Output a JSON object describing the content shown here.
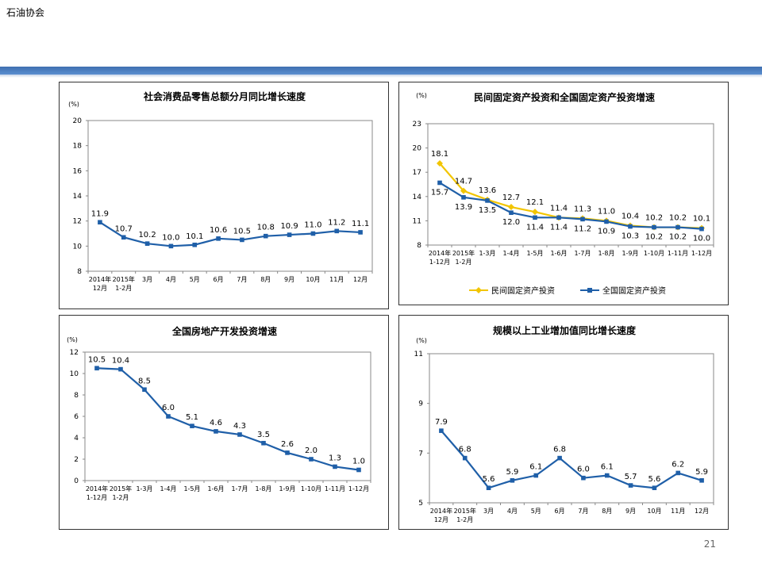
{
  "header": {
    "title": "石油协会",
    "page_number": "21"
  },
  "colors": {
    "accent_bar": "#4a7fc1",
    "series_blue": "#1f5fa8",
    "series_yellow": "#f2c500"
  },
  "chart_data": [
    {
      "type": "line",
      "title": "社会消费品零售总额分月同比增长速度",
      "ylabel": "(%)",
      "categories": [
        "2014年\n12月",
        "2015年\n1-2月",
        "3月",
        "4月",
        "5月",
        "6月",
        "7月",
        "8月",
        "9月",
        "10月",
        "11月",
        "12月"
      ],
      "series": [
        {
          "name": "",
          "values": [
            11.9,
            10.7,
            10.2,
            10.0,
            10.1,
            10.6,
            10.5,
            10.8,
            10.9,
            11.0,
            11.2,
            11.1
          ]
        }
      ],
      "ylim": [
        8,
        20
      ],
      "yticks": [
        8,
        10,
        12,
        14,
        16,
        18,
        20
      ],
      "grid": false
    },
    {
      "type": "line",
      "title": "民间固定资产投资和全国固定资产投资增速",
      "ylabel": "(%)",
      "categories": [
        "2014年\n1-12月",
        "2015年\n1-2月",
        "1-3月",
        "1-4月",
        "1-5月",
        "1-6月",
        "1-7月",
        "1-8月",
        "1-9月",
        "1-10月",
        "1-11月",
        "1-12月"
      ],
      "series": [
        {
          "name": "民间固定资产投资",
          "values": [
            18.1,
            14.7,
            13.6,
            12.7,
            12.1,
            11.4,
            11.3,
            11.0,
            10.4,
            10.2,
            10.2,
            10.1
          ]
        },
        {
          "name": "全国固定资产投资",
          "values": [
            15.7,
            13.9,
            13.5,
            12.0,
            11.4,
            11.4,
            11.2,
            10.9,
            10.3,
            10.2,
            10.2,
            10.0
          ]
        }
      ],
      "ylim": [
        8,
        23
      ],
      "yticks": [
        8,
        11,
        14,
        17,
        20,
        23
      ],
      "grid": false,
      "legend": "bottom"
    },
    {
      "type": "line",
      "title": "全国房地产开发投资增速",
      "ylabel": "(%)",
      "categories": [
        "2014年\n1-12月",
        "2015年\n1-2月",
        "1-3月",
        "1-4月",
        "1-5月",
        "1-6月",
        "1-7月",
        "1-8月",
        "1-9月",
        "1-10月",
        "1-11月",
        "1-12月"
      ],
      "series": [
        {
          "name": "",
          "values": [
            10.5,
            10.4,
            8.5,
            6.0,
            5.1,
            4.6,
            4.3,
            3.5,
            2.6,
            2.0,
            1.3,
            1.0
          ]
        }
      ],
      "ylim": [
        0,
        12
      ],
      "yticks": [
        0,
        2,
        4,
        6,
        8,
        10,
        12
      ],
      "grid": false
    },
    {
      "type": "line",
      "title": "规模以上工业增加值同比增长速度",
      "ylabel": "(%)",
      "categories": [
        "2014年\n12月",
        "2015年\n1-2月",
        "3月",
        "4月",
        "5月",
        "6月",
        "7月",
        "8月",
        "9月",
        "10月",
        "11月",
        "12月"
      ],
      "series": [
        {
          "name": "",
          "values": [
            7.9,
            6.8,
            5.6,
            5.9,
            6.1,
            6.8,
            6.0,
            6.1,
            5.7,
            5.6,
            6.2,
            5.9
          ]
        }
      ],
      "ylim": [
        5,
        11
      ],
      "yticks": [
        5,
        7,
        9,
        11
      ],
      "grid": false
    }
  ]
}
